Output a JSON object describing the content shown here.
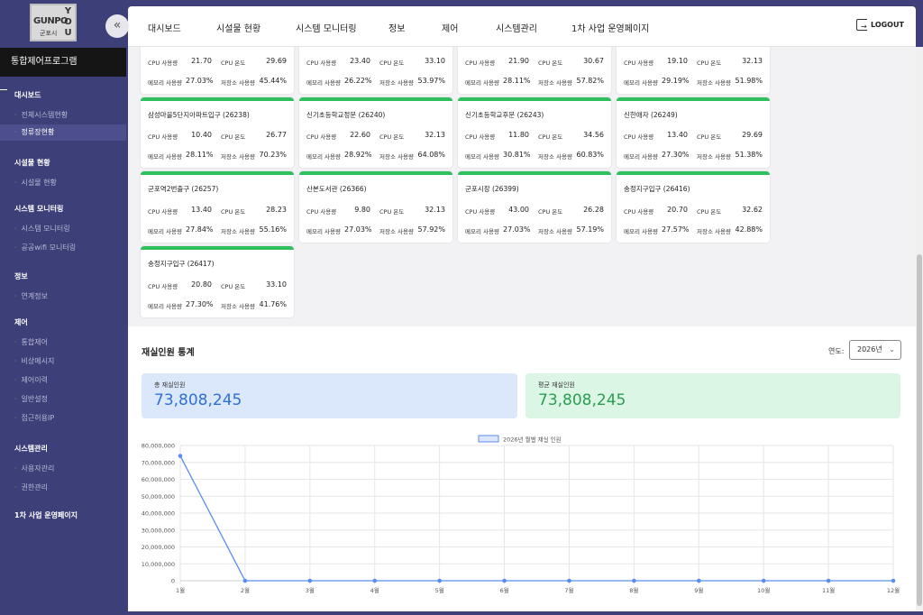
{
  "logo": {
    "line1": "GUNPO",
    "line2": "군포시",
    "vertical": "YOU"
  },
  "sidebar": {
    "collapse_icon": "«",
    "program_title": "통합제어프로그램",
    "sections": [
      {
        "label": "대시보드",
        "items": [
          {
            "label": "전체시스템현황"
          },
          {
            "label": "정류장현황",
            "active": true
          }
        ]
      },
      {
        "label": "시설물 현황",
        "items": [
          {
            "label": "시설물 현황"
          }
        ]
      },
      {
        "label": "시스템 모니터링",
        "items": [
          {
            "label": "시스템 모니터링"
          },
          {
            "label": "공공wifi 모니터링"
          }
        ]
      },
      {
        "label": "정보",
        "items": [
          {
            "label": "연계정보"
          }
        ]
      },
      {
        "label": "제어",
        "items": [
          {
            "label": "통합제어"
          },
          {
            "label": "비상메시지"
          },
          {
            "label": "제어이력"
          },
          {
            "label": "일반설정"
          },
          {
            "label": "접근허용IP"
          }
        ]
      },
      {
        "label": "시스템관리",
        "items": [
          {
            "label": "사용자관리"
          },
          {
            "label": "권한관리"
          }
        ]
      },
      {
        "label": "1차 사업 운영페이지",
        "items": []
      }
    ]
  },
  "topnav": {
    "items": [
      "대시보드",
      "시설물 현황",
      "시스템 모니터링",
      "정보",
      "제어",
      "시스템관리",
      "1차 사업 운영페이지"
    ],
    "logout": "LOGOUT"
  },
  "labels": {
    "cpu_usage": "CPU 사용량",
    "cpu_temp": "CPU 온도",
    "mem_usage": "메모리 사용량",
    "disk_usage": "저장소 사용량"
  },
  "stations": [
    {
      "name": "",
      "cpu_usage": "21.70",
      "cpu_temp": "29.69",
      "mem": "27.03%",
      "disk": "45.44%"
    },
    {
      "name": "",
      "cpu_usage": "23.40",
      "cpu_temp": "33.10",
      "mem": "26.22%",
      "disk": "53.97%"
    },
    {
      "name": "",
      "cpu_usage": "21.90",
      "cpu_temp": "30.67",
      "mem": "28.11%",
      "disk": "57.82%"
    },
    {
      "name": "",
      "cpu_usage": "19.10",
      "cpu_temp": "32.13",
      "mem": "29.19%",
      "disk": "51.98%"
    },
    {
      "name": "삼성마을5단지아파트입구 (26238)",
      "cpu_usage": "10.40",
      "cpu_temp": "26.77",
      "mem": "28.11%",
      "disk": "70.23%"
    },
    {
      "name": "신기초등학교정문 (26240)",
      "cpu_usage": "22.60",
      "cpu_temp": "32.13",
      "mem": "28.92%",
      "disk": "64.08%"
    },
    {
      "name": "신기초등학교후문 (26243)",
      "cpu_usage": "11.80",
      "cpu_temp": "34.56",
      "mem": "30.81%",
      "disk": "60.83%"
    },
    {
      "name": "신한애자 (26249)",
      "cpu_usage": "13.40",
      "cpu_temp": "29.69",
      "mem": "27.30%",
      "disk": "51.38%"
    },
    {
      "name": "군포역2번출구 (26257)",
      "cpu_usage": "13.40",
      "cpu_temp": "28.23",
      "mem": "27.84%",
      "disk": "55.16%"
    },
    {
      "name": "산본도서관 (26366)",
      "cpu_usage": "9.80",
      "cpu_temp": "32.13",
      "mem": "27.03%",
      "disk": "57.92%"
    },
    {
      "name": "군포시장 (26399)",
      "cpu_usage": "43.00",
      "cpu_temp": "26.28",
      "mem": "27.03%",
      "disk": "57.19%"
    },
    {
      "name": "송정지구입구 (26416)",
      "cpu_usage": "20.70",
      "cpu_temp": "32.62",
      "mem": "27.57%",
      "disk": "42.88%"
    },
    {
      "name": "송정지구입구 (26417)",
      "cpu_usage": "20.80",
      "cpu_temp": "33.10",
      "mem": "27.30%",
      "disk": "41.76%"
    }
  ],
  "stats": {
    "title": "재실인원 통계",
    "year_label": "연도:",
    "year_value": "2026년",
    "total_label": "총 재실인원",
    "total_value": "73,808,245",
    "avg_label": "평균 재실인원",
    "avg_value": "73,808,245"
  },
  "chart_data": {
    "type": "line",
    "categories": [
      "1월",
      "2월",
      "3월",
      "4월",
      "5월",
      "6월",
      "7월",
      "8월",
      "9월",
      "10월",
      "11월",
      "12월"
    ],
    "series": [
      {
        "name": "2026년 월별 재실 인원",
        "values": [
          73808245,
          0,
          0,
          0,
          0,
          0,
          0,
          0,
          0,
          0,
          0,
          0
        ],
        "color": "#5b8def"
      }
    ],
    "yticks": [
      "0",
      "10,000,000",
      "20,000,000",
      "30,000,000",
      "40,000,000",
      "50,000,000",
      "60,000,000",
      "70,000,000",
      "80,000,000"
    ],
    "ylim": [
      0,
      80000000
    ],
    "grid": true,
    "legend": "top-center"
  },
  "colors": {
    "sidebar": "#3d3f78",
    "card_accent": "#2ec05c",
    "total_value": "#2e6fd8",
    "avg_value": "#2a9d50"
  }
}
